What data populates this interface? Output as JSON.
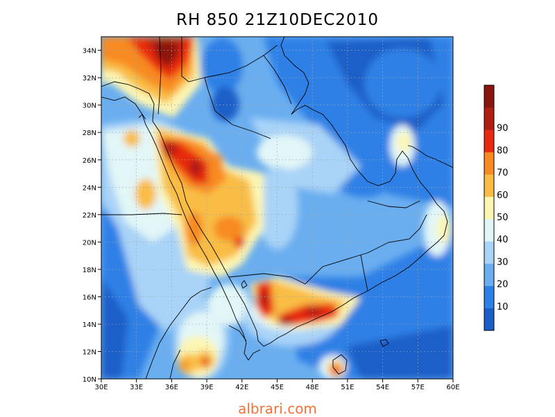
{
  "title": "RH 850 21Z10DEC2010",
  "watermark": "albrari.com",
  "map": {
    "variable": "Relative humidity at 850 hPa",
    "lon_range": [
      30,
      60
    ],
    "lat_range": [
      10,
      35
    ],
    "lon_ticks": [
      "30E",
      "33E",
      "36E",
      "39E",
      "42E",
      "45E",
      "48E",
      "51E",
      "54E",
      "57E",
      "60E"
    ],
    "lat_ticks": [
      "10N",
      "12N",
      "14N",
      "16N",
      "18N",
      "20N",
      "22N",
      "24N",
      "26N",
      "28N",
      "30N",
      "32N",
      "34N"
    ],
    "grid": "dotted",
    "coastlines": true,
    "country_borders": true
  },
  "colorbar": {
    "labels": [
      "10",
      "20",
      "30",
      "40",
      "50",
      "60",
      "70",
      "80",
      "90"
    ],
    "colors": [
      "#1a5fc8",
      "#2d80e6",
      "#6aaef0",
      "#a9d3f7",
      "#e2f6f7",
      "#fcf6b3",
      "#f9bd45",
      "#f88a24",
      "#e82a10",
      "#b01e12",
      "#8a1410"
    ]
  }
}
